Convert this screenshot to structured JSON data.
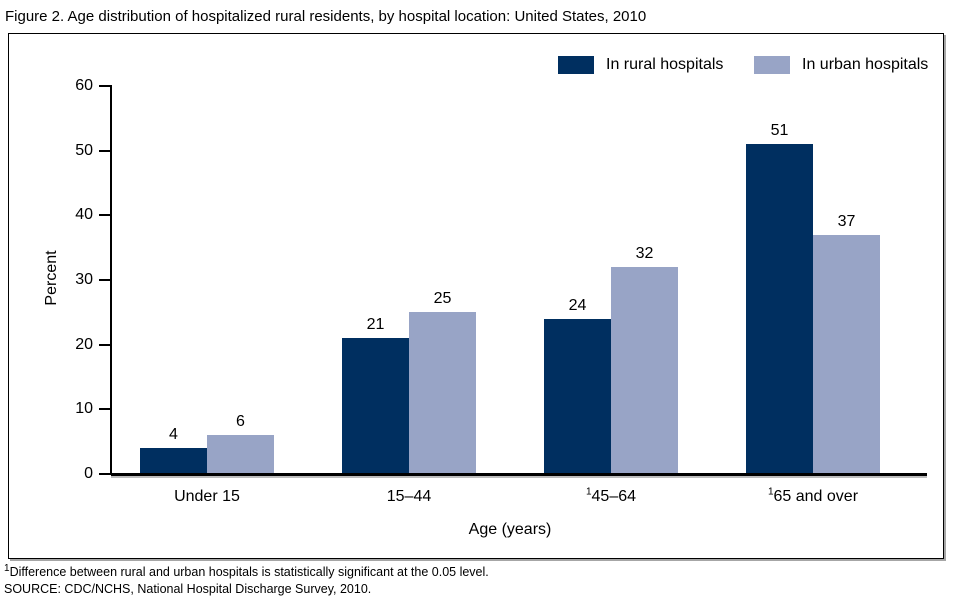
{
  "title": "Figure 2. Age distribution of hospitalized rural residents, by hospital location: United States, 2010",
  "chart_data": {
    "type": "bar",
    "categories": [
      {
        "sup": "",
        "label": "Under 15"
      },
      {
        "sup": "",
        "label": "15–44"
      },
      {
        "sup": "1",
        "label": "45–64"
      },
      {
        "sup": "1",
        "label": "65 and over"
      }
    ],
    "series": [
      {
        "name": "In rural hospitals",
        "color": "#002f60",
        "values": [
          4,
          21,
          24,
          51
        ]
      },
      {
        "name": "In urban hospitals",
        "color": "#98a4c6",
        "values": [
          6,
          25,
          32,
          37
        ]
      }
    ],
    "title": "",
    "xlabel": "Age (years)",
    "ylabel": "Percent",
    "ylim": [
      0,
      60
    ],
    "ytick_step": 10,
    "grid": false,
    "legend_position": "top-right",
    "value_labels": true
  },
  "colors": {
    "rural": "#002f60",
    "urban": "#98a4c6",
    "axis": "#000000",
    "frame_border": "#000000"
  },
  "footnotes": [
    {
      "sup": "1",
      "text": "Difference between rural and urban hospitals is statistically significant at the 0.05 level."
    },
    {
      "sup": "",
      "text": "SOURCE: CDC/NCHS, National Hospital Discharge Survey, 2010."
    }
  ]
}
